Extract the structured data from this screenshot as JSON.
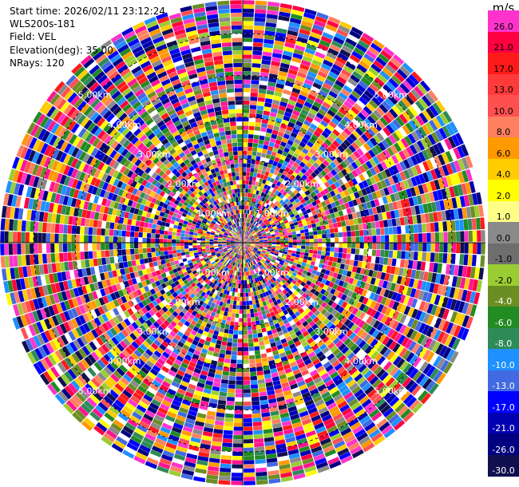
{
  "info": {
    "start_time": "Start time: 2026/02/11 23:12:24",
    "instrument": "WLS200s-181",
    "field": "Field: VEL",
    "elevation": "Elevation(deg): 35.00",
    "nrays": "NRays: 120"
  },
  "colorbar": {
    "unit": "m/s",
    "entries": [
      {
        "label": "26.0",
        "color": "#ff33cc"
      },
      {
        "label": "21.0",
        "color": "#ff0040"
      },
      {
        "label": "17.0",
        "color": "#ff1a1a"
      },
      {
        "label": "13.0",
        "color": "#ff3a3a"
      },
      {
        "label": "10.0",
        "color": "#ff5050"
      },
      {
        "label": "8.0",
        "color": "#ff8060"
      },
      {
        "label": "6.0",
        "color": "#ff9900"
      },
      {
        "label": "4.0",
        "color": "#ffcc00"
      },
      {
        "label": "2.0",
        "color": "#ffff00"
      },
      {
        "label": "1.0",
        "color": "#ffff88"
      },
      {
        "label": "0.0",
        "color": "#8a8a8a"
      },
      {
        "label": "-1.0",
        "color": "#6e6e6e"
      },
      {
        "label": "-2.0",
        "color": "#9acd32"
      },
      {
        "label": "-4.0",
        "color": "#6b8e23"
      },
      {
        "label": "-6.0",
        "color": "#228b22"
      },
      {
        "label": "-8.0",
        "color": "#2e8b57"
      },
      {
        "label": "-10.0",
        "color": "#1e90ff"
      },
      {
        "label": "-13.0",
        "color": "#4169e1"
      },
      {
        "label": "-17.0",
        "color": "#0000ff"
      },
      {
        "label": "-21.0",
        "color": "#0000b0"
      },
      {
        "label": "-26.0",
        "color": "#000080"
      },
      {
        "label": "-30.0",
        "color": "#101050"
      }
    ]
  },
  "chart_data": {
    "type": "heatmap",
    "projection": "polar-ppi",
    "field": "VEL",
    "nrays": 120,
    "range_rings_km": [
      1.0,
      2.0,
      3.0,
      4.0,
      5.0
    ],
    "ring_labels": [
      "1.00km",
      "2.00km",
      "3.00km",
      "4.00km",
      "5.00km"
    ],
    "max_range_km": 5.8,
    "gate_km": 0.1,
    "palette": [
      "#ff33cc",
      "#ff1493",
      "#ff0040",
      "#ff1a1a",
      "#ff5050",
      "#ff8060",
      "#ff9900",
      "#ffcc00",
      "#ffff00",
      "#228b22",
      "#2e8b57",
      "#6b8e23",
      "#9acd32",
      "#1e90ff",
      "#4169e1",
      "#0000ff",
      "#0000cd",
      "#0000b0",
      "#000080",
      "#101050",
      "#ffffff",
      "#8a8a8a"
    ]
  }
}
